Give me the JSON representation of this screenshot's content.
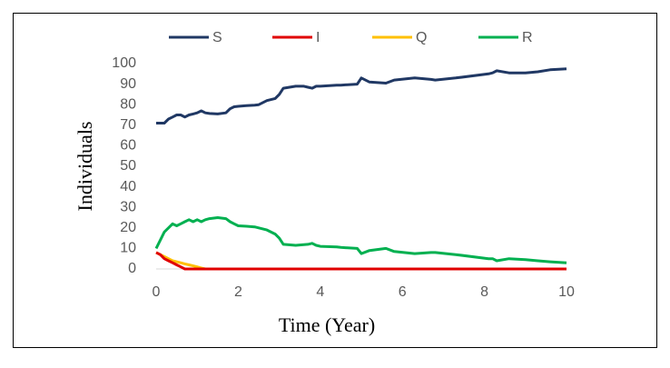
{
  "chart_data": {
    "type": "line",
    "x_label": "Time (Year)",
    "y_label": "Individuals",
    "x": [
      0,
      0.1,
      0.2,
      0.3,
      0.4,
      0.5,
      0.6,
      0.7,
      0.8,
      0.9,
      1.0,
      1.1,
      1.2,
      1.3,
      1.5,
      1.7,
      1.8,
      1.9,
      2.0,
      2.2,
      2.4,
      2.5,
      2.7,
      2.9,
      3.0,
      3.1,
      3.4,
      3.6,
      3.7,
      3.8,
      3.9,
      4.0,
      4.4,
      4.5,
      4.9,
      5.0,
      5.2,
      5.6,
      5.8,
      6.3,
      6.7,
      6.8,
      7.3,
      8.1,
      8.2,
      8.3,
      8.6,
      9.0,
      9.3,
      9.6,
      10
    ],
    "series": [
      {
        "name": "S",
        "color": "#203864",
        "values": [
          71,
          71,
          71,
          73,
          74,
          75,
          75,
          74,
          75,
          75.5,
          76,
          77,
          76,
          75.7,
          75.5,
          76,
          78,
          79,
          79.2,
          79.5,
          79.8,
          80,
          82,
          83,
          85,
          88,
          89,
          89,
          88.5,
          88,
          89,
          89,
          89.5,
          89.5,
          90,
          93,
          91,
          90.5,
          92,
          93,
          92.3,
          92,
          93,
          95,
          95.5,
          96.5,
          95.5,
          95.5,
          96,
          97,
          97.5
        ]
      },
      {
        "name": "I",
        "color": "#e00000",
        "values": [
          8,
          7,
          5,
          4,
          3,
          2,
          1,
          0,
          0,
          0,
          0,
          0,
          0,
          0,
          0,
          0,
          0,
          0,
          0,
          0,
          0,
          0,
          0,
          0,
          0,
          0,
          0,
          0,
          0,
          0,
          0,
          0,
          0,
          0,
          0,
          0,
          0,
          0,
          0,
          0,
          0,
          0,
          0,
          0,
          0,
          0,
          0,
          0,
          0,
          0,
          0
        ]
      },
      {
        "name": "Q",
        "color": "#ffc000",
        "values": [
          8,
          7,
          6,
          5,
          4,
          3.5,
          3,
          2.5,
          2,
          1.5,
          1,
          0.5,
          0,
          0,
          0,
          0,
          0,
          0,
          0,
          0,
          0,
          0,
          0,
          0,
          0,
          0,
          0,
          0,
          0,
          0,
          0,
          0,
          0,
          0,
          0,
          0,
          0,
          0,
          0,
          0,
          0,
          0,
          0,
          0,
          0,
          0,
          0,
          0,
          0,
          0,
          0
        ]
      },
      {
        "name": "R",
        "color": "#00b050",
        "values": [
          10,
          14,
          18,
          20,
          22,
          21,
          22,
          23,
          24,
          23,
          24,
          23,
          24,
          24.5,
          25,
          24.5,
          23,
          22,
          21,
          20.8,
          20.5,
          20,
          19,
          17,
          15,
          12,
          11.5,
          11.8,
          12,
          12.5,
          11.5,
          11,
          10.7,
          10.5,
          10,
          7.5,
          9,
          10,
          8.5,
          7.5,
          8,
          8,
          7,
          5,
          5,
          4,
          5,
          4.5,
          4,
          3.5,
          3
        ]
      }
    ],
    "xlim": [
      0,
      10
    ],
    "xticks": [
      0,
      2,
      4,
      6,
      8,
      10
    ],
    "ylim": [
      0,
      100
    ],
    "yticks": [
      0,
      10,
      20,
      30,
      40,
      50,
      60,
      70,
      80,
      90,
      100
    ],
    "legend": "top"
  }
}
